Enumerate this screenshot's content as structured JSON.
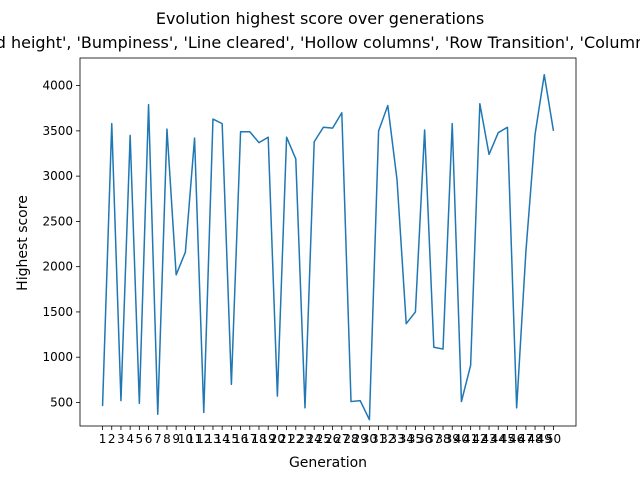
{
  "chart_data": {
    "type": "line",
    "title": "Evolution highest score over generations",
    "subtitle": "['Aggregated height', 'Bumpiness', 'Line cleared', 'Hollow columns', 'Row Transition', 'Column Transition']",
    "xlabel": "Generation",
    "ylabel": "Highest score",
    "ylim": [
      240,
      4305
    ],
    "yticks": [
      500,
      1000,
      1500,
      2000,
      2500,
      3000,
      3500,
      4000
    ],
    "x": [
      1,
      2,
      3,
      4,
      5,
      6,
      7,
      8,
      9,
      10,
      11,
      12,
      13,
      14,
      15,
      16,
      17,
      18,
      19,
      20,
      21,
      22,
      23,
      24,
      25,
      26,
      27,
      28,
      29,
      30,
      31,
      32,
      33,
      34,
      35,
      36,
      37,
      38,
      39,
      40,
      41,
      42,
      43,
      44,
      45,
      46,
      47,
      48,
      49,
      50
    ],
    "xlim": [
      -1.45,
      52.45
    ],
    "line_color": "#1f77b4",
    "grid": false,
    "series": [
      {
        "values": [
          460,
          3580,
          520,
          3450,
          490,
          3790,
          370,
          3520,
          1910,
          2160,
          3420,
          390,
          3630,
          3580,
          700,
          3490,
          3490,
          3370,
          3430,
          570,
          3430,
          3190,
          440,
          3380,
          3540,
          3530,
          3700,
          510,
          520,
          310,
          3500,
          3780,
          2960,
          1370,
          1500,
          3510,
          1110,
          1090,
          3580,
          510,
          910,
          3800,
          3240,
          3480,
          3540,
          440,
          2160,
          3460,
          4120,
          3500
        ]
      }
    ]
  }
}
